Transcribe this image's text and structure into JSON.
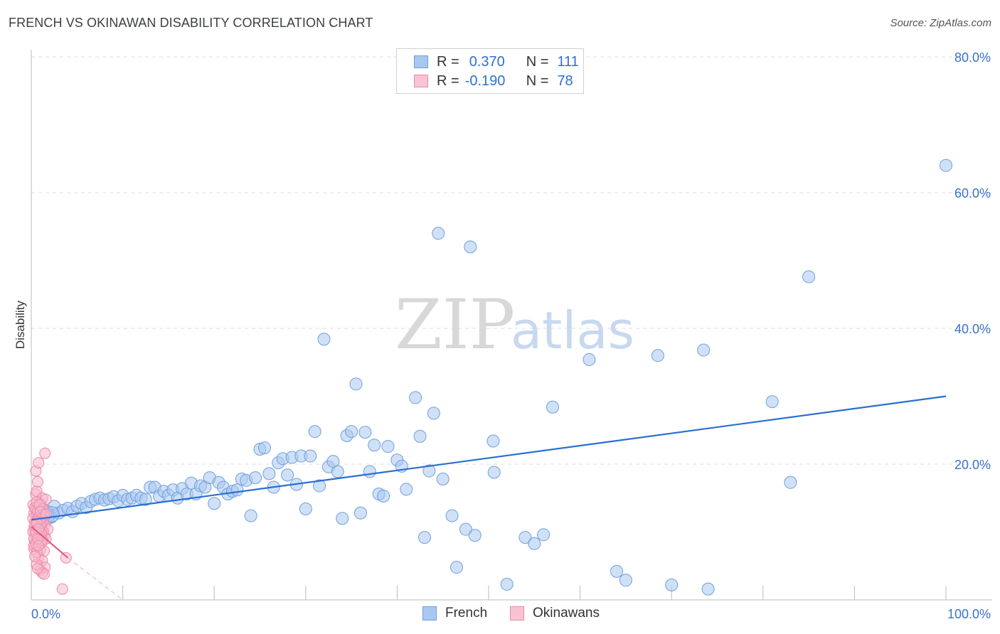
{
  "header": {
    "title": "FRENCH VS OKINAWAN DISABILITY CORRELATION CHART",
    "source": "Source: ZipAtlas.com"
  },
  "legend": {
    "rows": [
      {
        "r_label": "R =",
        "r_value": "0.370",
        "n_label": "N =",
        "n_value": "111"
      },
      {
        "r_label": "R =",
        "r_value": "-0.190",
        "n_label": "N =",
        "n_value": "78"
      }
    ]
  },
  "watermark": {
    "part1": "ZIP",
    "part2": "atlas"
  },
  "colors": {
    "french_fill": "#a9c8f0",
    "french_stroke": "#6f9fdc",
    "french_line": "#2a6fd0",
    "okinawan_fill": "#f8b8cc",
    "okinawan_stroke": "#ee88a8",
    "okinawan_line": "#e45a8a",
    "axis_label": "#3a72c8",
    "grid": "#dddddd"
  },
  "chart_data": {
    "type": "scatter",
    "title": "FRENCH VS OKINAWAN DISABILITY CORRELATION CHART",
    "xlabel": "",
    "ylabel": "Disability",
    "xlim": [
      0,
      100
    ],
    "ylim": [
      0,
      85
    ],
    "x_tick_labels": [
      "0.0%",
      "100.0%"
    ],
    "y_ticks": [
      20,
      40,
      60,
      80
    ],
    "y_tick_labels": [
      "20.0%",
      "40.0%",
      "60.0%",
      "80.0%"
    ],
    "grid": true,
    "legend_position": "top-center",
    "series": [
      {
        "name": "French",
        "r": 0.37,
        "n": 111,
        "trend": {
          "x0": 0,
          "y0": 11.8,
          "x1": 100,
          "y1": 30.0
        },
        "points": [
          [
            0.5,
            13.5
          ],
          [
            0.8,
            12.0
          ],
          [
            1.0,
            14.0
          ],
          [
            1.2,
            11.8
          ],
          [
            1.5,
            12.5
          ],
          [
            1.8,
            13.0
          ],
          [
            2.0,
            12.5
          ],
          [
            2.2,
            12.2
          ],
          [
            2.5,
            13.8
          ],
          [
            3.0,
            12.8
          ],
          [
            3.5,
            13.2
          ],
          [
            4.0,
            13.5
          ],
          [
            4.5,
            13.0
          ],
          [
            5.0,
            13.8
          ],
          [
            5.5,
            14.2
          ],
          [
            6.0,
            13.6
          ],
          [
            6.5,
            14.5
          ],
          [
            7.0,
            14.8
          ],
          [
            7.5,
            15.0
          ],
          [
            8.0,
            14.7
          ],
          [
            8.5,
            14.9
          ],
          [
            9.0,
            15.2
          ],
          [
            9.5,
            14.6
          ],
          [
            10.0,
            15.4
          ],
          [
            10.5,
            14.8
          ],
          [
            11.0,
            15.0
          ],
          [
            11.5,
            15.4
          ],
          [
            12.0,
            15.0
          ],
          [
            12.5,
            14.8
          ],
          [
            13.0,
            16.6
          ],
          [
            13.5,
            16.6
          ],
          [
            14.0,
            15.3
          ],
          [
            14.5,
            16.0
          ],
          [
            15.0,
            15.4
          ],
          [
            15.5,
            16.2
          ],
          [
            16.0,
            15.0
          ],
          [
            16.5,
            16.4
          ],
          [
            17.0,
            15.6
          ],
          [
            17.5,
            17.2
          ],
          [
            18.0,
            15.6
          ],
          [
            18.5,
            16.8
          ],
          [
            19.0,
            16.6
          ],
          [
            19.5,
            18.0
          ],
          [
            20.0,
            14.2
          ],
          [
            20.5,
            17.3
          ],
          [
            21.0,
            16.6
          ],
          [
            21.5,
            15.6
          ],
          [
            22.0,
            16.0
          ],
          [
            22.5,
            16.2
          ],
          [
            23.0,
            17.8
          ],
          [
            23.5,
            17.6
          ],
          [
            24.0,
            12.4
          ],
          [
            24.5,
            18.0
          ],
          [
            25.0,
            22.2
          ],
          [
            25.5,
            22.4
          ],
          [
            26.0,
            18.6
          ],
          [
            26.5,
            16.6
          ],
          [
            27.0,
            20.2
          ],
          [
            27.5,
            20.8
          ],
          [
            28.0,
            18.4
          ],
          [
            28.5,
            21.0
          ],
          [
            29.0,
            17.0
          ],
          [
            29.5,
            21.2
          ],
          [
            30.0,
            13.4
          ],
          [
            30.5,
            21.2
          ],
          [
            31.0,
            24.8
          ],
          [
            31.5,
            16.8
          ],
          [
            32.0,
            38.4
          ],
          [
            32.5,
            19.6
          ],
          [
            33.0,
            20.4
          ],
          [
            33.5,
            18.9
          ],
          [
            34.0,
            12.0
          ],
          [
            34.5,
            24.2
          ],
          [
            35.0,
            24.8
          ],
          [
            35.5,
            31.8
          ],
          [
            36.0,
            12.8
          ],
          [
            36.5,
            24.7
          ],
          [
            37.0,
            18.9
          ],
          [
            37.5,
            22.8
          ],
          [
            38.0,
            15.6
          ],
          [
            38.5,
            15.3
          ],
          [
            39.0,
            22.6
          ],
          [
            40.0,
            20.6
          ],
          [
            40.5,
            19.7
          ],
          [
            41.0,
            16.3
          ],
          [
            42.0,
            29.8
          ],
          [
            42.5,
            24.1
          ],
          [
            43.0,
            9.2
          ],
          [
            43.5,
            19.0
          ],
          [
            44.0,
            27.5
          ],
          [
            44.5,
            54.0
          ],
          [
            45.0,
            17.8
          ],
          [
            46.0,
            12.4
          ],
          [
            46.5,
            4.8
          ],
          [
            47.5,
            10.4
          ],
          [
            48.0,
            52.0
          ],
          [
            48.5,
            9.5
          ],
          [
            50.5,
            23.4
          ],
          [
            50.6,
            18.8
          ],
          [
            52.0,
            2.3
          ],
          [
            54.0,
            9.2
          ],
          [
            55.0,
            8.3
          ],
          [
            56.0,
            9.6
          ],
          [
            57.0,
            28.4
          ],
          [
            61.0,
            35.4
          ],
          [
            64.0,
            4.2
          ],
          [
            65.0,
            2.9
          ],
          [
            68.5,
            36.0
          ],
          [
            70.0,
            2.2
          ],
          [
            73.5,
            36.8
          ],
          [
            74.0,
            1.6
          ],
          [
            81.0,
            29.2
          ],
          [
            83.0,
            17.3
          ],
          [
            85.0,
            47.6
          ],
          [
            100.0,
            64.0
          ]
        ]
      },
      {
        "name": "Okinawans",
        "r": -0.19,
        "n": 78,
        "trend": {
          "x0": 0,
          "y0": 10.8,
          "x1": 4.0,
          "y1": 6.2
        },
        "trend_dashed_to": {
          "x": 10.0,
          "y": 0.0
        },
        "points": [
          [
            0.2,
            14.0
          ],
          [
            0.3,
            12.8
          ],
          [
            0.4,
            11.5
          ],
          [
            0.5,
            10.4
          ],
          [
            0.6,
            9.2
          ],
          [
            0.4,
            8.6
          ],
          [
            0.3,
            7.5
          ],
          [
            0.5,
            13.2
          ],
          [
            0.6,
            12.6
          ],
          [
            0.7,
            11.8
          ],
          [
            0.8,
            10.8
          ],
          [
            0.9,
            9.6
          ],
          [
            1.0,
            8.8
          ],
          [
            1.1,
            13.6
          ],
          [
            1.2,
            12.2
          ],
          [
            1.3,
            10.2
          ],
          [
            1.4,
            9.4
          ],
          [
            1.5,
            11.0
          ],
          [
            0.2,
            12.0
          ],
          [
            0.3,
            10.6
          ],
          [
            0.4,
            9.8
          ],
          [
            0.5,
            15.6
          ],
          [
            0.6,
            16.0
          ],
          [
            0.7,
            17.4
          ],
          [
            0.5,
            19.0
          ],
          [
            0.8,
            20.2
          ],
          [
            1.5,
            21.6
          ],
          [
            1.2,
            15.0
          ],
          [
            1.6,
            14.8
          ],
          [
            1.8,
            10.4
          ],
          [
            1.0,
            7.4
          ],
          [
            1.4,
            7.2
          ],
          [
            0.8,
            6.2
          ],
          [
            1.2,
            5.8
          ],
          [
            1.0,
            4.4
          ],
          [
            1.5,
            4.8
          ],
          [
            1.2,
            4.0
          ],
          [
            1.4,
            3.8
          ],
          [
            0.6,
            5.2
          ],
          [
            0.7,
            4.6
          ],
          [
            0.9,
            12.4
          ],
          [
            1.1,
            11.2
          ],
          [
            1.3,
            10.0
          ],
          [
            1.6,
            9.0
          ],
          [
            0.3,
            8.0
          ],
          [
            0.4,
            13.6
          ],
          [
            0.6,
            14.4
          ],
          [
            0.7,
            12.0
          ],
          [
            0.8,
            11.4
          ],
          [
            0.9,
            10.2
          ],
          [
            1.0,
            9.4
          ],
          [
            1.1,
            8.4
          ],
          [
            1.2,
            12.8
          ],
          [
            1.3,
            11.6
          ],
          [
            0.2,
            10.0
          ],
          [
            0.3,
            9.0
          ],
          [
            0.5,
            8.2
          ],
          [
            0.6,
            7.0
          ],
          [
            0.7,
            13.0
          ],
          [
            0.9,
            12.2
          ],
          [
            1.0,
            11.0
          ],
          [
            1.1,
            9.8
          ],
          [
            1.2,
            8.8
          ],
          [
            1.3,
            13.4
          ],
          [
            1.4,
            12.4
          ],
          [
            0.4,
            11.0
          ],
          [
            0.5,
            10.0
          ],
          [
            0.7,
            9.0
          ],
          [
            0.8,
            8.0
          ],
          [
            0.9,
            14.0
          ],
          [
            1.0,
            13.0
          ],
          [
            1.1,
            12.0
          ],
          [
            0.6,
            11.4
          ],
          [
            0.8,
            10.4
          ],
          [
            1.6,
            12.6
          ],
          [
            3.8,
            6.2
          ],
          [
            3.4,
            1.6
          ],
          [
            0.4,
            6.4
          ]
        ]
      }
    ]
  },
  "bottom_legend": {
    "items": [
      "French",
      "Okinawans"
    ]
  }
}
